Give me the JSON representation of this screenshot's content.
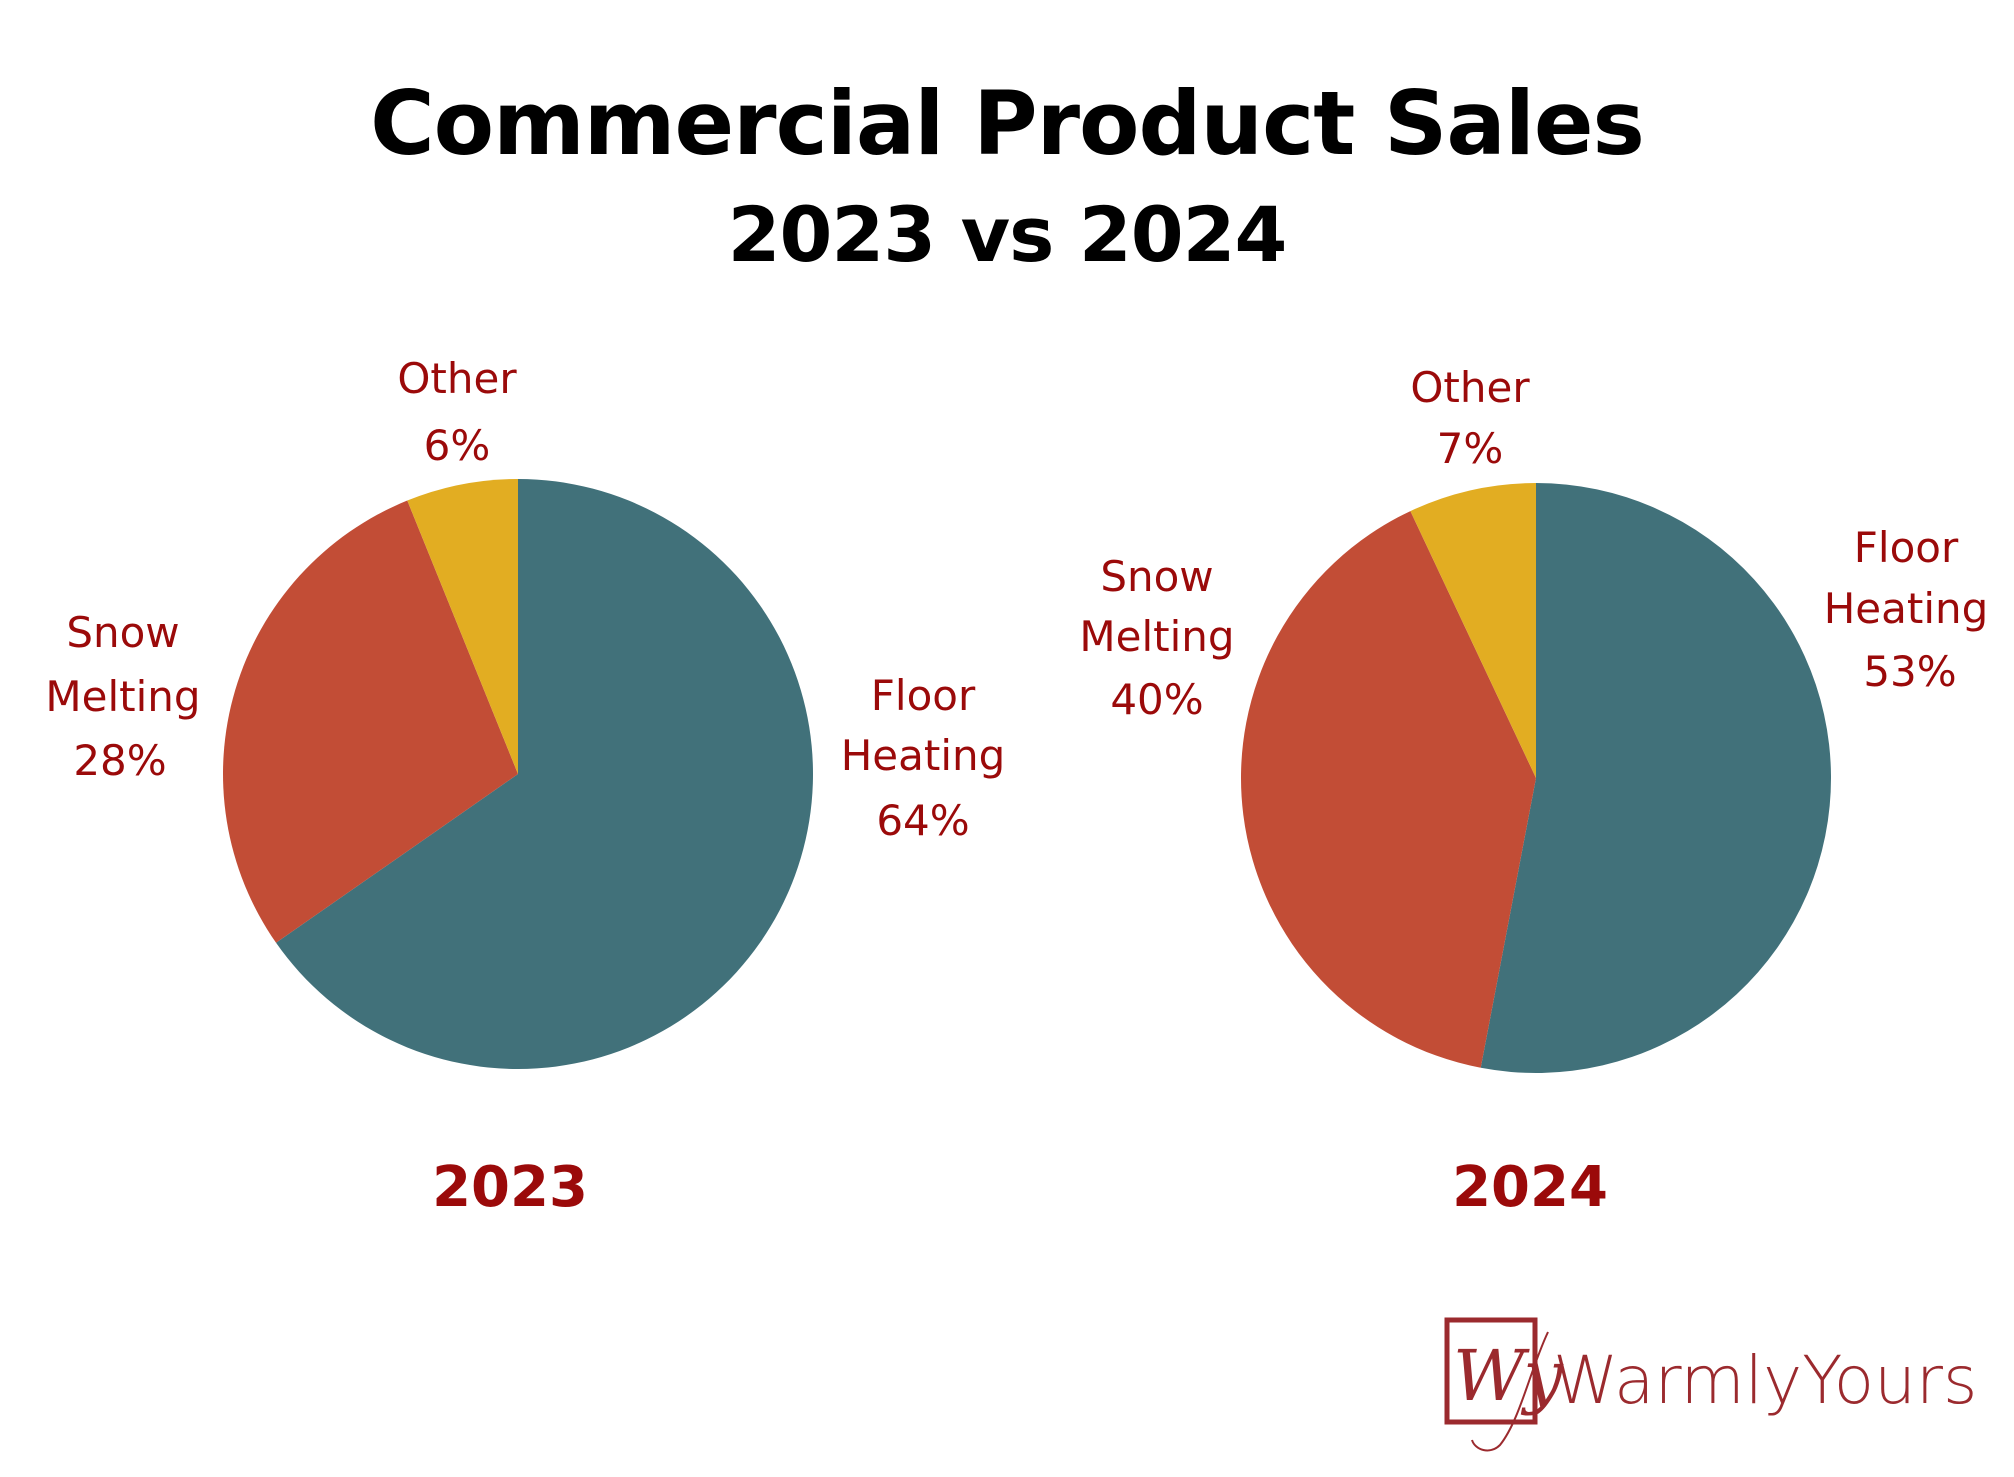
{
  "header": {
    "title": "Commercial Product Sales",
    "subtitle": "2023 vs 2024"
  },
  "colors": {
    "floor_heating": "#41717a",
    "snow_melting": "#c24d36",
    "other": "#e2ad22",
    "label": "#9b0a0a",
    "logo": "#9b2a2e"
  },
  "chart_data": [
    {
      "type": "pie",
      "title": "2023",
      "categories": [
        "Floor Heating",
        "Snow Melting",
        "Other"
      ],
      "values": [
        64,
        28,
        6
      ],
      "labels": [
        {
          "lines": [
            "Floor",
            "Heating",
            "64%"
          ]
        },
        {
          "lines": [
            "Snow",
            "Melting",
            "28%"
          ]
        },
        {
          "lines": [
            "Other",
            "6%"
          ]
        }
      ]
    },
    {
      "type": "pie",
      "title": "2024",
      "categories": [
        "Floor Heating",
        "Snow Melting",
        "Other"
      ],
      "values": [
        53,
        40,
        7
      ],
      "labels": [
        {
          "lines": [
            "Floor",
            "Heating",
            "53%"
          ]
        },
        {
          "lines": [
            "Snow",
            "Melting",
            "40%"
          ]
        },
        {
          "lines": [
            "Other",
            "7%"
          ]
        }
      ]
    }
  ],
  "logo": {
    "monogram": "Wy",
    "text": "WarmlyYours"
  }
}
